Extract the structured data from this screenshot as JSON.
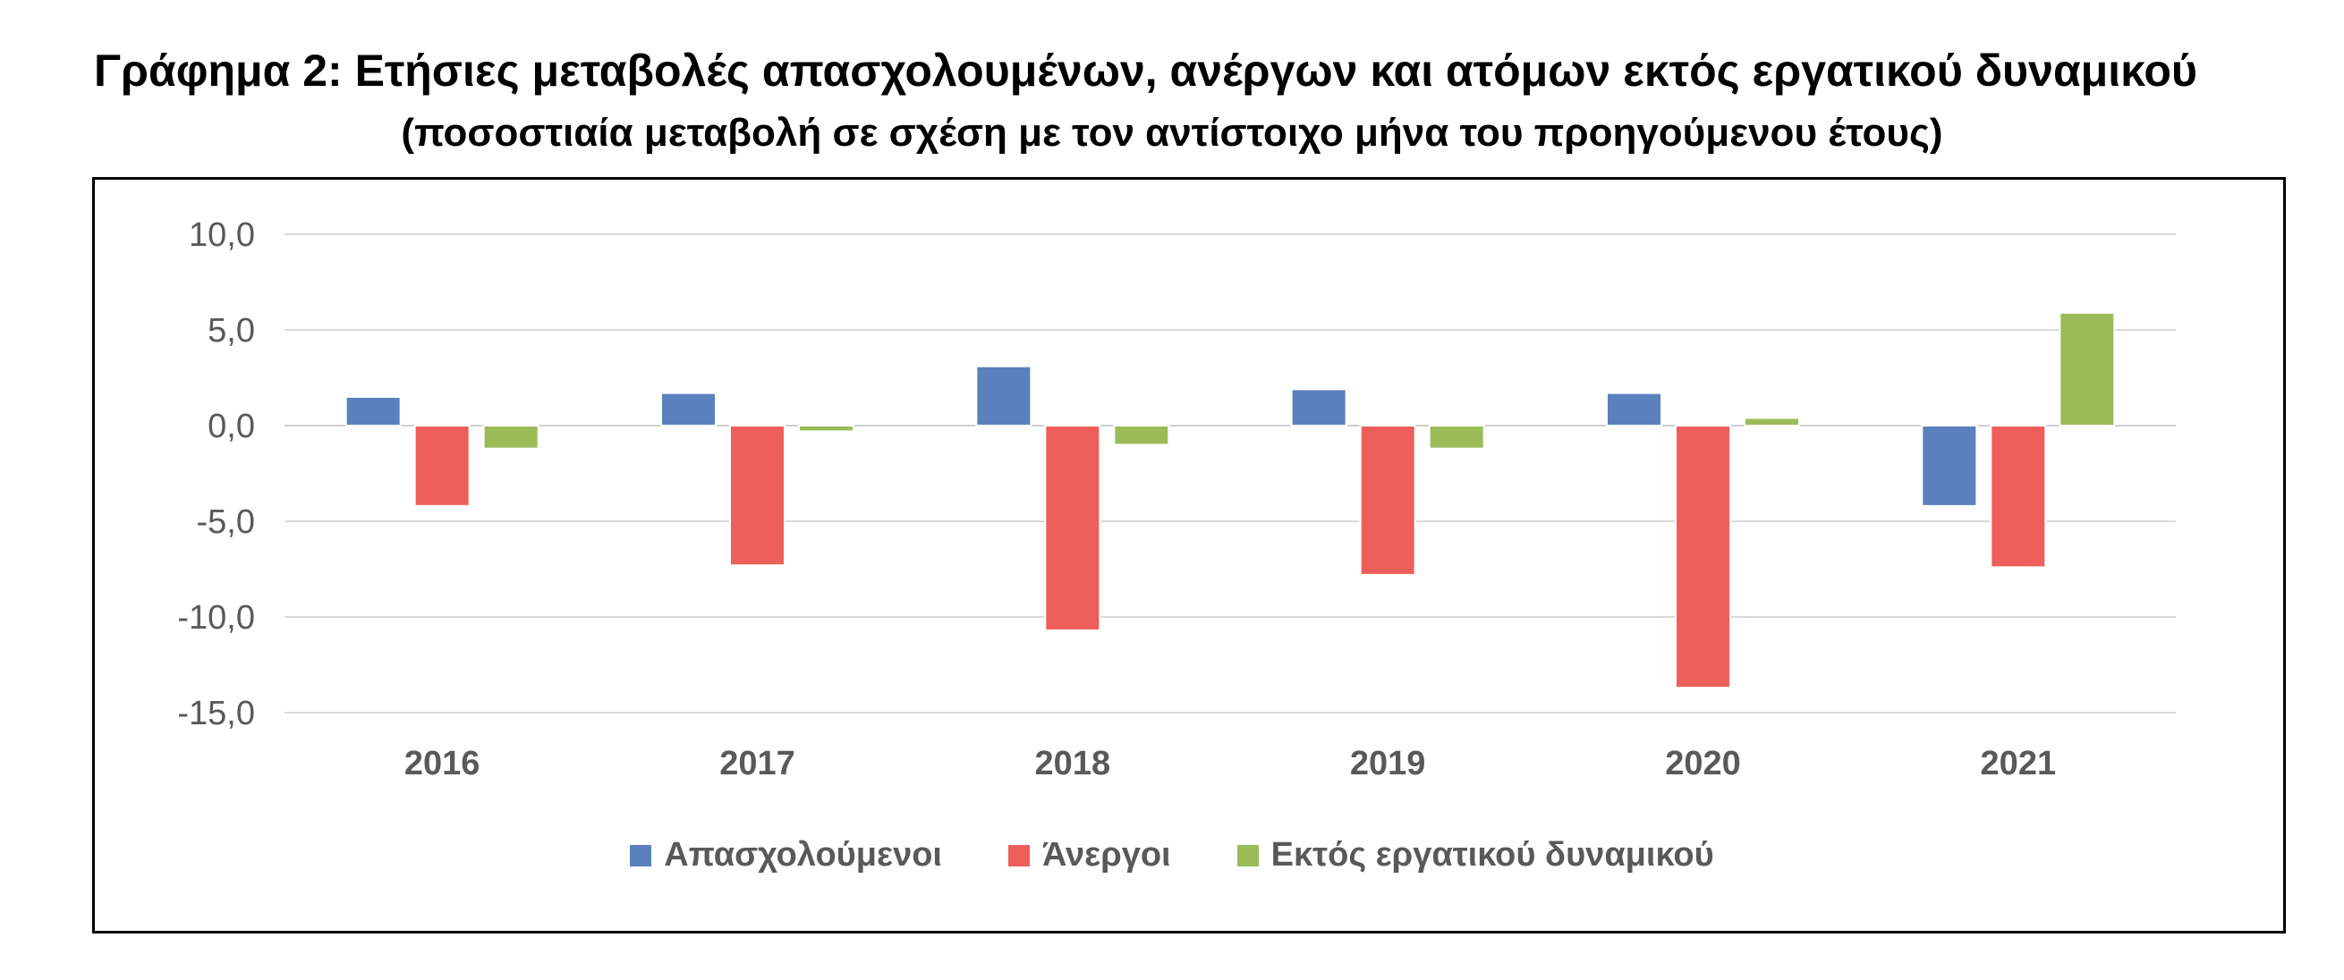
{
  "title": "Γράφημα 2: Ετήσιες μεταβολές απασχολουμένων, ανέργων και ατόμων εκτός εργατικού δυναμικού",
  "subtitle": "(ποσοστιαία μεταβολή σε σχέση με τον αντίστοιχο μήνα του προηγούμενου έτους)",
  "chart_data": {
    "type": "bar",
    "categories": [
      "2016",
      "2017",
      "2018",
      "2019",
      "2020",
      "2021"
    ],
    "series": [
      {
        "name": "Απασχολούμενοι",
        "color": "#5b80be",
        "values": [
          1.5,
          1.7,
          3.1,
          1.9,
          1.7,
          -4.2
        ]
      },
      {
        "name": "Άνεργοι",
        "color": "#ee5f5b",
        "values": [
          -4.2,
          -7.3,
          -10.7,
          -7.8,
          -13.7,
          -7.4
        ]
      },
      {
        "name": "Εκτός εργατικού δυναμικού",
        "color": "#9bbb59",
        "values": [
          -1.2,
          -0.3,
          -1.0,
          -1.2,
          0.4,
          5.9
        ]
      }
    ],
    "yticks": [
      "10,0",
      "5,0",
      "0,0",
      "-5,0",
      "-10,0",
      "-15,0"
    ],
    "ylim": [
      -15,
      10
    ],
    "grid": true,
    "legend": "bottom"
  }
}
